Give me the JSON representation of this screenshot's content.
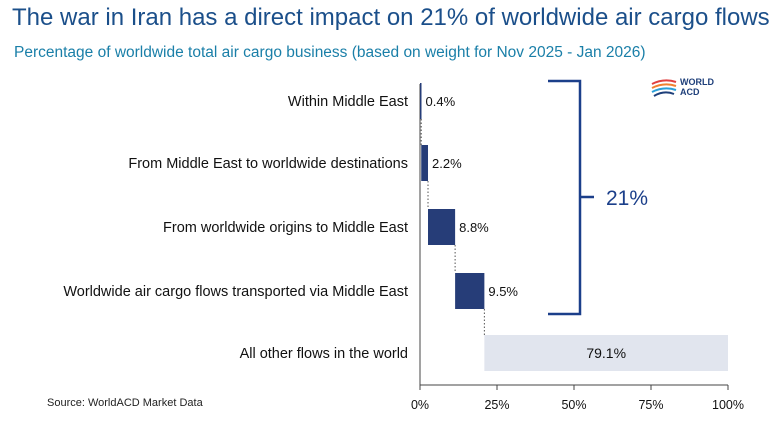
{
  "header": {
    "title": "The war in Iran has a direct impact on 21% of worldwide air cargo flows",
    "subtitle": "Percentage of worldwide total air cargo business (based on weight for Nov 2025 - Jan 2026)"
  },
  "logo": {
    "line1": "WORLD",
    "line2": "ACD"
  },
  "footer": {
    "source": "Source: WorldACD Market Data"
  },
  "chart_data": {
    "type": "bar",
    "subtype": "waterfall-horizontal",
    "title": "The war in Iran has a direct impact on 21% of worldwide air cargo flows",
    "subtitle": "Percentage of worldwide total air cargo business (based on weight for Nov 2025 - Jan 2026)",
    "categories": [
      "Within Middle East",
      "From Middle East to worldwide destinations",
      "From worldwide origins to Middle East",
      "Worldwide air cargo flows transported via Middle East",
      "All other flows in the world"
    ],
    "values": [
      0.4,
      2.2,
      8.8,
      9.5,
      79.1
    ],
    "value_labels": [
      "0.4%",
      "2.2%",
      "8.8%",
      "9.5%",
      "79.1%"
    ],
    "xlim": [
      0,
      100
    ],
    "xticks": [
      "0%",
      "25%",
      "50%",
      "75%",
      "100%"
    ],
    "xtick_values": [
      0,
      25,
      50,
      75,
      100
    ],
    "bracket": {
      "label": "21%",
      "spans": "first four categories"
    },
    "colors": {
      "bar": "#263d78",
      "other": "#e1e5ee",
      "axis": "#444444",
      "bracket": "#1b3f8a"
    }
  }
}
